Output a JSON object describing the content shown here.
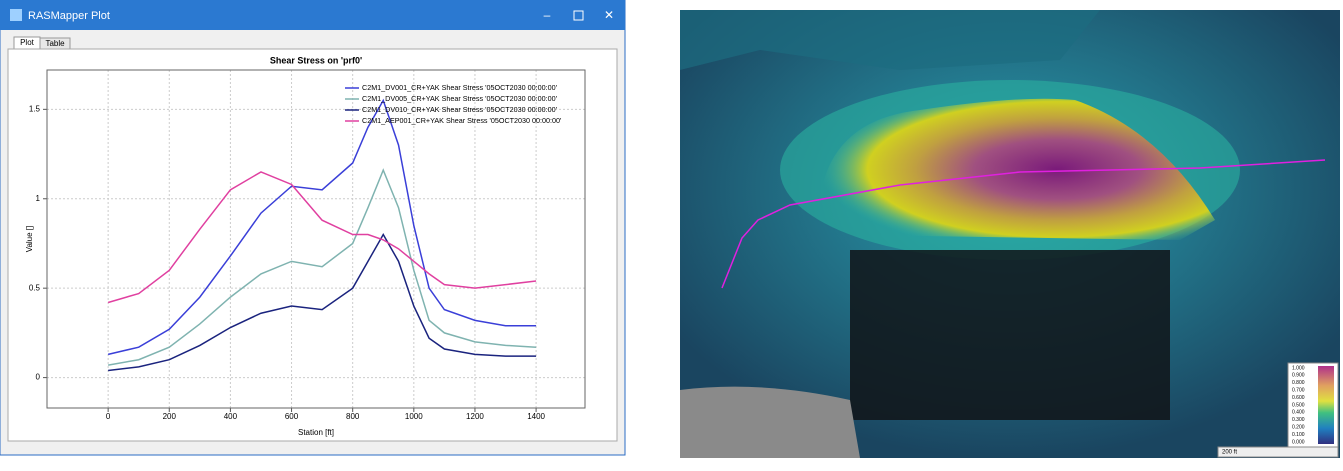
{
  "window": {
    "title": "RASMapper Plot",
    "tabs": [
      "Plot",
      "Table"
    ]
  },
  "chart_data": {
    "type": "line",
    "title": "Shear Stress on 'prf0'",
    "x_label": "Station [ft]",
    "y_label": "Value []",
    "x": [
      0,
      100,
      200,
      300,
      400,
      500,
      600,
      700,
      800,
      850,
      900,
      950,
      1000,
      1050,
      1100,
      1200,
      1300,
      1400
    ],
    "series": [
      {
        "name": "C2M1_DV001_CR+YAK Shear Stress '05OCT2030 00:00:00'",
        "color": "#3a3fd8",
        "values": [
          0.13,
          0.17,
          0.27,
          0.45,
          0.68,
          0.92,
          1.07,
          1.05,
          1.2,
          1.4,
          1.55,
          1.3,
          0.85,
          0.5,
          0.38,
          0.32,
          0.29,
          0.29
        ]
      },
      {
        "name": "C2M1_DV005_CR+YAK Shear Stress '05OCT2030 00:00:00'",
        "color": "#7fb3b0",
        "values": [
          0.07,
          0.1,
          0.17,
          0.3,
          0.45,
          0.58,
          0.65,
          0.62,
          0.75,
          0.95,
          1.16,
          0.95,
          0.6,
          0.32,
          0.25,
          0.2,
          0.18,
          0.17
        ]
      },
      {
        "name": "C2M1_DV010_CR+YAK Shear Stress '05OCT2030 00:00:00'",
        "color": "#1a237e",
        "values": [
          0.04,
          0.06,
          0.1,
          0.18,
          0.28,
          0.36,
          0.4,
          0.38,
          0.5,
          0.65,
          0.8,
          0.65,
          0.4,
          0.22,
          0.16,
          0.13,
          0.12,
          0.12
        ]
      },
      {
        "name": "C2M1_AEP001_CR+YAK Shear Stress '05OCT2030 00:00:00'",
        "color": "#e040a0",
        "values": [
          0.42,
          0.47,
          0.6,
          0.83,
          1.05,
          1.15,
          1.08,
          0.88,
          0.8,
          0.8,
          0.77,
          0.72,
          0.65,
          0.58,
          0.52,
          0.5,
          0.52,
          0.54
        ]
      }
    ],
    "xlim": [
      -200,
      1560
    ],
    "ylim": [
      -0.17,
      1.72
    ],
    "xticks": [
      0,
      200,
      400,
      600,
      800,
      1000,
      1200,
      1400
    ],
    "yticks": [
      0,
      0.5,
      1,
      1.5
    ],
    "grid": true,
    "legend": "upper-right"
  },
  "map": {
    "legend_labels": [
      "1.000",
      "0.900",
      "0.800",
      "0.700",
      "0.600",
      "0.500",
      "0.400",
      "0.300",
      "0.200",
      "0.100",
      "0.000"
    ],
    "scale_label": "200 ft"
  }
}
